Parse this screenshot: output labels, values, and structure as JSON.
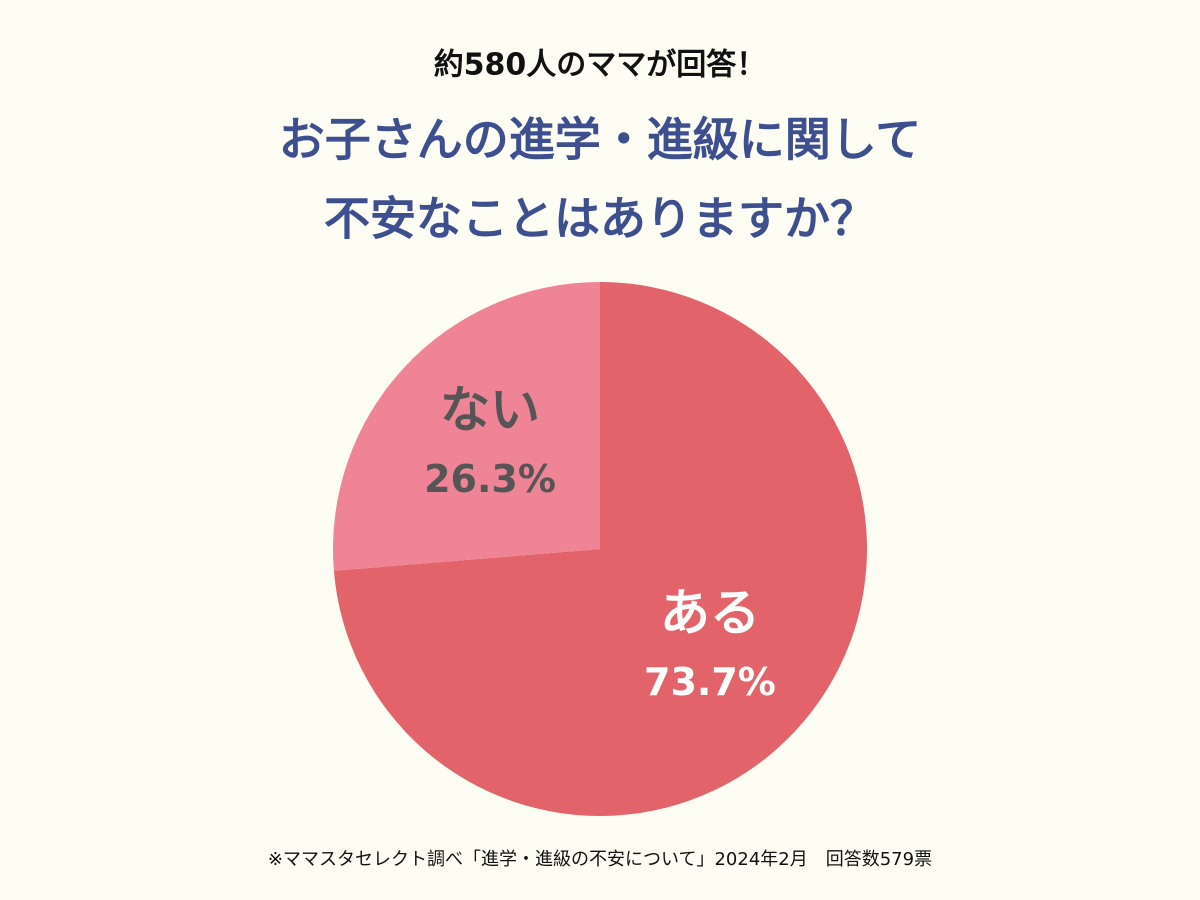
{
  "chart_data": {
    "type": "pie",
    "subtitle": "約580人のママが回答！",
    "title_lines": [
      "お子さんの進学・進級に関して",
      "不安なことはありますか？"
    ],
    "categories": [
      "ある",
      "ない"
    ],
    "values": [
      73.7,
      26.3
    ],
    "value_labels": [
      "73.7%",
      "26.3%"
    ],
    "colors": [
      "#e2646a",
      "#f08497"
    ],
    "label_colors": [
      "#ffffff",
      "#555555"
    ],
    "start_angle": 0,
    "direction": "clockwise",
    "note": "※ママスタセレクト調べ「進学・進級の不安について」2024年2月　回答数579票"
  }
}
